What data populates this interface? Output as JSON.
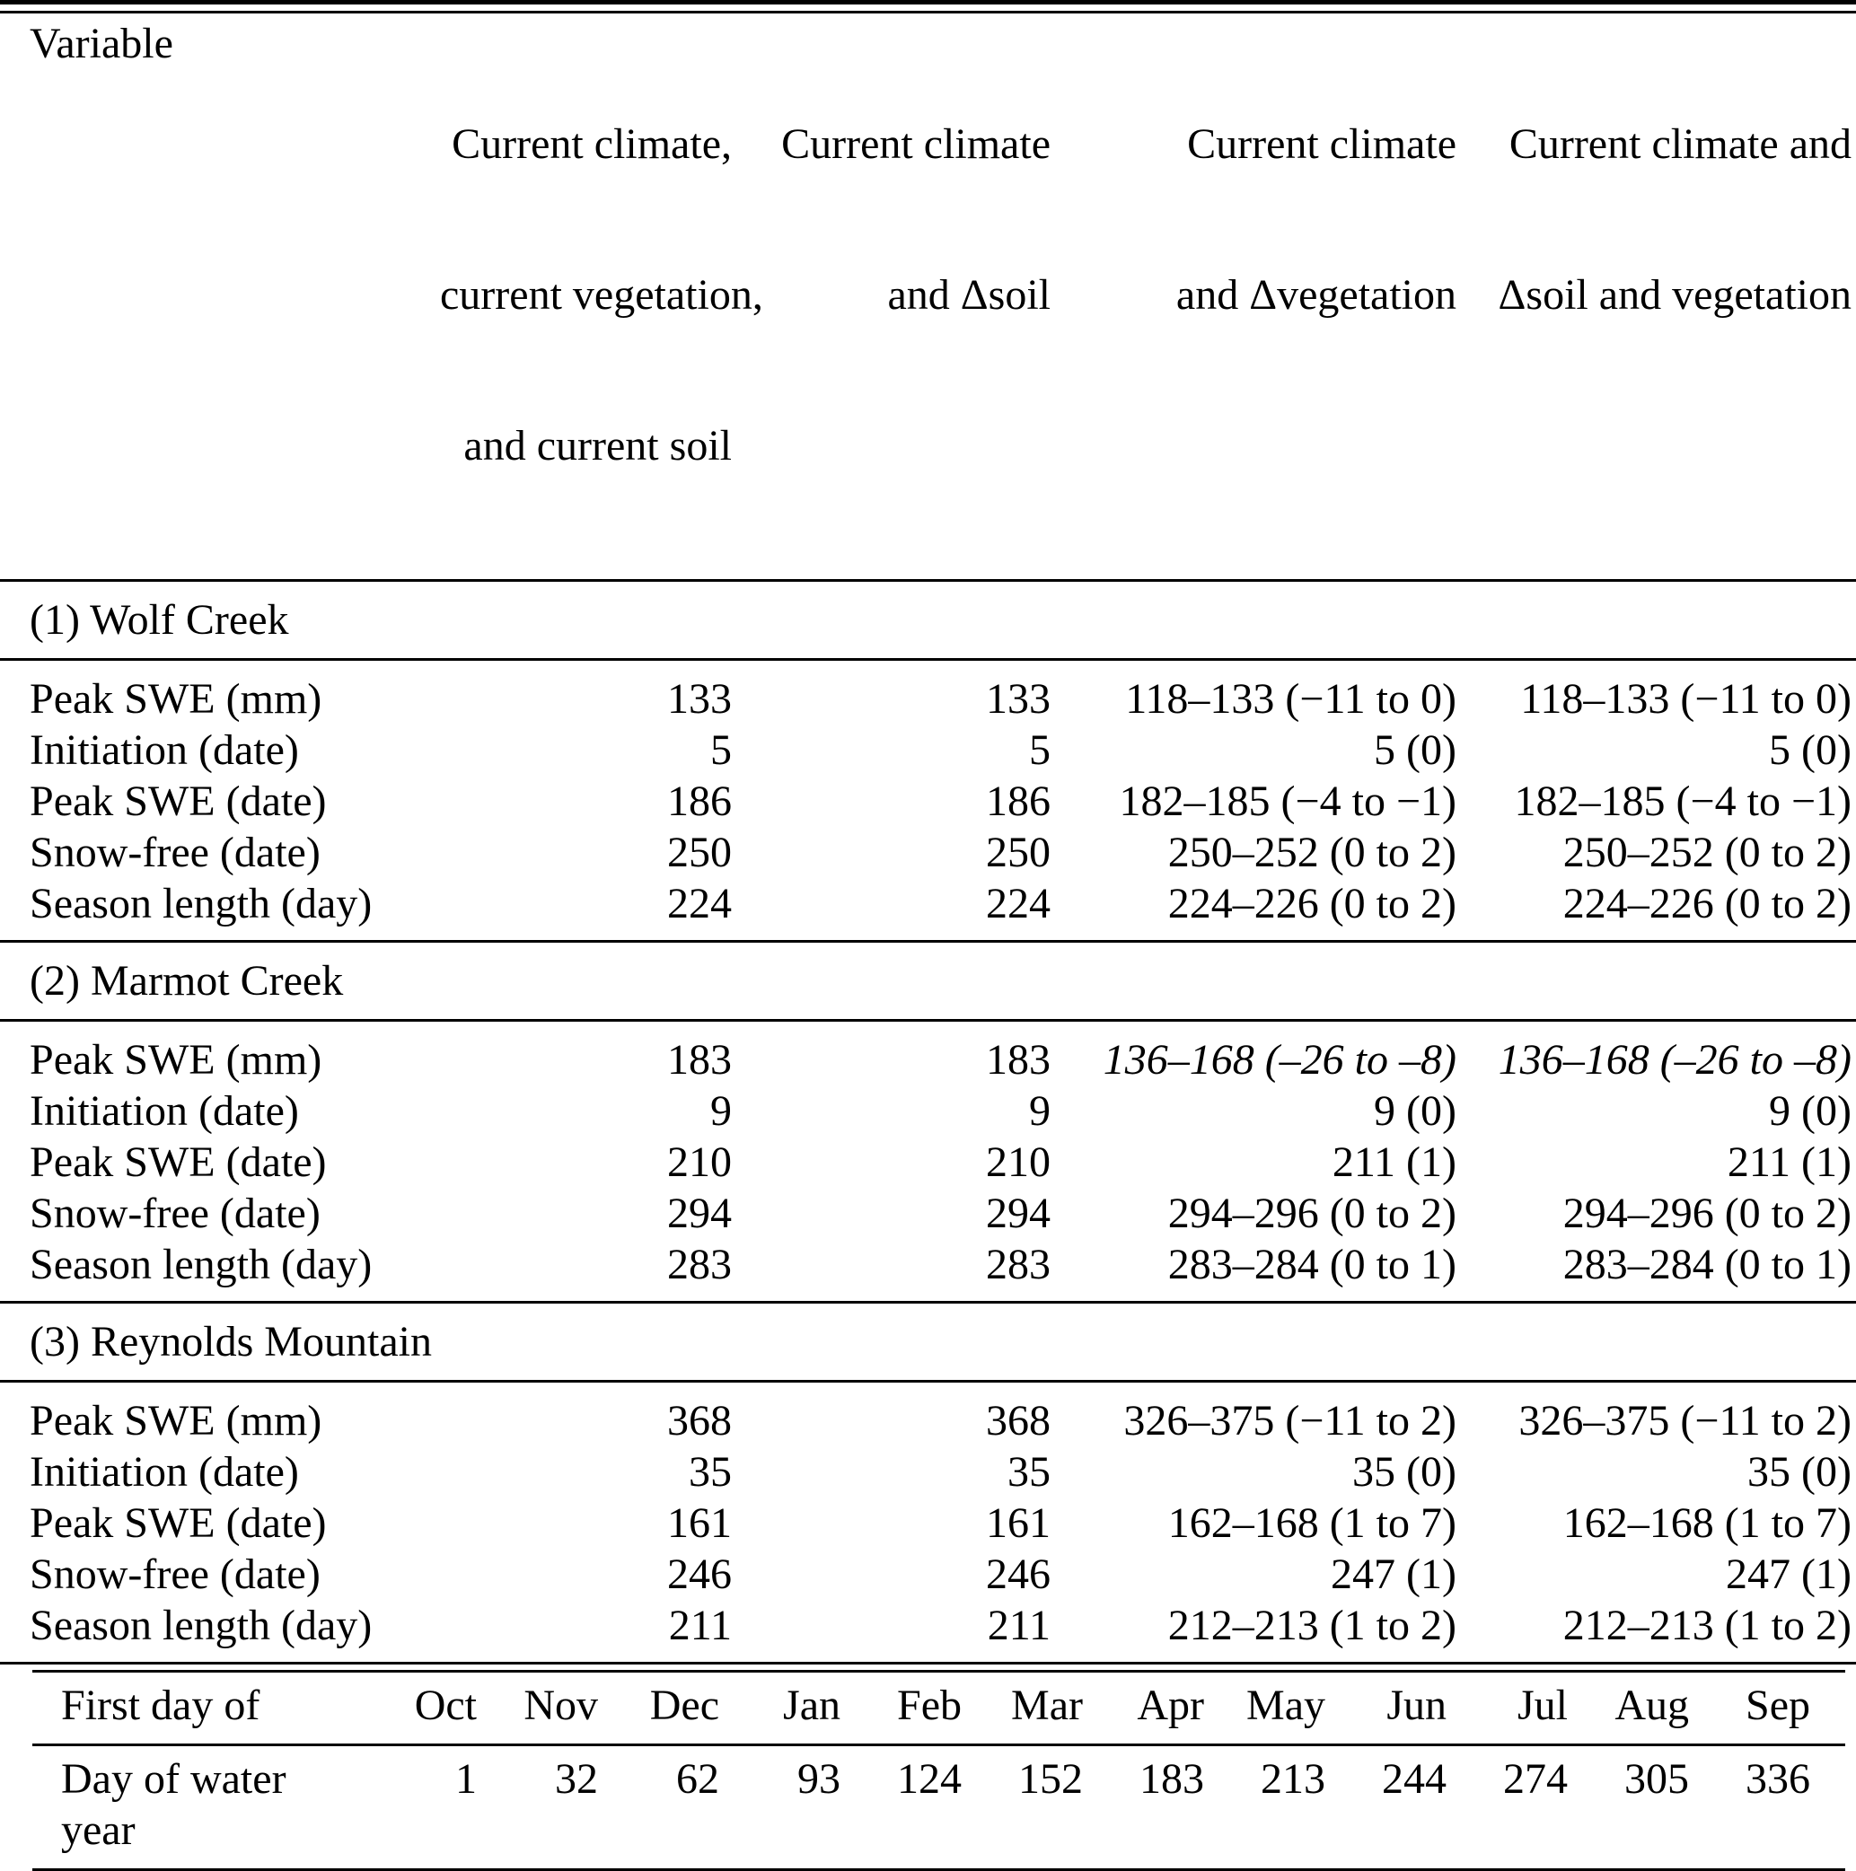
{
  "table": {
    "header": {
      "variable": "Variable",
      "col1_lines": [
        "Current climate,",
        "current vegetation,",
        "and current soil"
      ],
      "col2_lines": [
        "Current climate",
        "and Δsoil"
      ],
      "col3_lines": [
        "Current climate",
        "and Δvegetation"
      ],
      "col4_lines": [
        "Current climate and",
        "Δsoil and vegetation"
      ]
    },
    "sections": [
      {
        "title": "(1) Wolf Creek",
        "rows": [
          {
            "variable": "Peak SWE (mm)",
            "values": [
              "133",
              "133",
              "118–133 (−11 to 0)",
              "118–133 (−11 to 0)"
            ]
          },
          {
            "variable": "Initiation (date)",
            "values": [
              "5",
              "5",
              "5 (0)",
              "5 (0)"
            ]
          },
          {
            "variable": "Peak SWE (date)",
            "values": [
              "186",
              "186",
              "182–185 (−4 to −1)",
              "182–185 (−4 to −1)"
            ]
          },
          {
            "variable": "Snow-free (date)",
            "values": [
              "250",
              "250",
              "250–252 (0 to 2)",
              "250–252 (0 to 2)"
            ]
          },
          {
            "variable": "Season length (day)",
            "values": [
              "224",
              "224",
              "224–226 (0 to 2)",
              "224–226 (0 to 2)"
            ]
          }
        ]
      },
      {
        "title": "(2) Marmot Creek",
        "rows": [
          {
            "variable": "Peak SWE (mm)",
            "values": [
              "183",
              "183",
              "136–168 (–26 to –8)",
              "136–168 (–26 to –8)"
            ]
          },
          {
            "variable": "Initiation (date)",
            "values": [
              "9",
              "9",
              "9 (0)",
              "9 (0)"
            ]
          },
          {
            "variable": "Peak SWE (date)",
            "values": [
              "210",
              "210",
              "211 (1)",
              "211 (1)"
            ]
          },
          {
            "variable": "Snow-free (date)",
            "values": [
              "294",
              "294",
              "294–296 (0 to 2)",
              "294–296 (0 to 2)"
            ]
          },
          {
            "variable": "Season length (day)",
            "values": [
              "283",
              "283",
              "283–284 (0 to 1)",
              "283–284 (0 to 1)"
            ]
          }
        ]
      },
      {
        "title": "(3) Reynolds Mountain",
        "rows": [
          {
            "variable": "Peak SWE (mm)",
            "values": [
              "368",
              "368",
              "326–375 (−11 to 2)",
              "326–375 (−11 to 2)"
            ]
          },
          {
            "variable": "Initiation (date)",
            "values": [
              "35",
              "35",
              "35 (0)",
              "35 (0)"
            ]
          },
          {
            "variable": "Peak SWE (date)",
            "values": [
              "161",
              "161",
              "162–168 (1 to 7)",
              "162–168 (1 to 7)"
            ]
          },
          {
            "variable": "Snow-free (date)",
            "values": [
              "246",
              "246",
              "247 (1)",
              "247 (1)"
            ]
          },
          {
            "variable": "Season length (day)",
            "values": [
              "211",
              "211",
              "212–213 (1 to 2)",
              "212–213 (1 to 2)"
            ]
          }
        ]
      }
    ],
    "water_year_key": {
      "row1_label": "First day of",
      "months": [
        "Oct",
        "Nov",
        "Dec",
        "Jan",
        "Feb",
        "Mar",
        "Apr",
        "May",
        "Jun",
        "Jul",
        "Aug",
        "Sep"
      ],
      "row2_label": "Day of water year",
      "days": [
        "1",
        "32",
        "62",
        "93",
        "124",
        "152",
        "183",
        "213",
        "244",
        "274",
        "305",
        "336"
      ]
    }
  }
}
